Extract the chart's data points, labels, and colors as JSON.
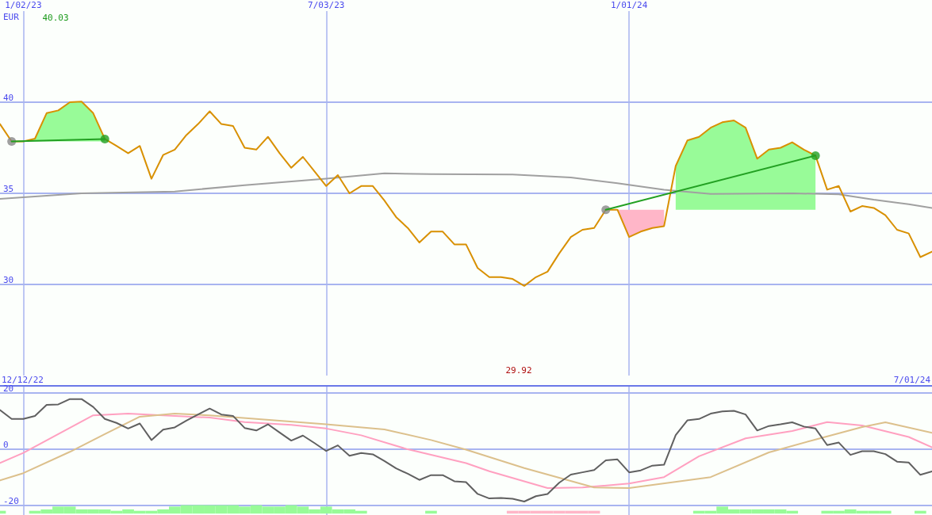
{
  "chart_data": [
    {
      "type": "line",
      "ylabel": "EUR",
      "x": [
        "2022-12-19",
        "2022-12-26",
        "2023-01-02",
        "2023-01-09",
        "2023-01-16",
        "2023-01-23",
        "2023-01-30",
        "2023-02-06",
        "2023-02-13",
        "2023-02-20",
        "2023-02-27",
        "2023-03-06",
        "2023-03-13",
        "2023-03-20",
        "2023-03-27",
        "2023-04-03",
        "2023-04-10",
        "2023-04-17",
        "2023-04-24",
        "2023-05-01",
        "2023-05-08",
        "2023-05-15",
        "2023-05-22",
        "2023-05-29",
        "2023-06-05",
        "2023-06-12",
        "2023-06-19",
        "2023-06-26",
        "2023-07-03",
        "2023-07-10",
        "2023-07-17",
        "2023-07-24",
        "2023-07-31",
        "2023-08-07",
        "2023-08-14",
        "2023-08-21",
        "2023-08-28",
        "2023-09-04",
        "2023-09-11",
        "2023-09-18",
        "2023-09-25",
        "2023-10-02",
        "2023-10-09",
        "2023-10-16",
        "2023-10-23",
        "2023-10-30",
        "2023-11-06",
        "2023-11-13",
        "2023-11-20",
        "2023-11-27",
        "2023-12-04",
        "2023-12-11",
        "2023-12-18",
        "2023-12-25",
        "2024-01-01",
        "2024-01-08",
        "2024-01-15",
        "2024-01-22",
        "2024-01-29",
        "2024-02-05",
        "2024-02-12",
        "2024-02-19",
        "2024-02-26",
        "2024-03-04",
        "2024-03-11",
        "2024-03-18",
        "2024-03-25",
        "2024-04-01",
        "2024-04-08",
        "2024-04-15",
        "2024-04-22",
        "2024-04-29",
        "2024-05-06",
        "2024-05-13",
        "2024-05-20",
        "2024-05-27",
        "2024-06-03",
        "2024-06-10",
        "2024-06-17",
        "2024-06-24",
        "2024-07-01"
      ],
      "xlim": [
        "2022-12-19",
        "2024-07-01"
      ],
      "xticks": [
        {
          "value": "2023-01-02",
          "label": "1/02/23"
        },
        {
          "value": "2023-07-03",
          "label": "7/03/23"
        },
        {
          "value": "2024-01-01",
          "label": "1/01/24"
        }
      ],
      "ylim": [
        25,
        45
      ],
      "yticks": [
        30,
        35,
        40
      ],
      "grid": true,
      "annotations": [
        "40.03",
        "29.92"
      ],
      "series": [
        {
          "type": "area",
          "color": "#98fb98",
          "x": [
            "2022-12-26",
            "2023-01-02",
            "2023-01-09",
            "2023-01-16",
            "2023-01-23",
            "2023-01-30",
            "2023-02-06",
            "2023-02-13",
            "2023-02-20"
          ],
          "values": [
            null,
            null,
            null,
            null,
            null,
            null,
            null,
            null,
            null
          ],
          "lower": [
            37.85,
            37.85,
            37.85,
            37.85,
            37.85,
            37.85,
            37.85,
            37.85,
            37.85
          ],
          "upper": [
            37.85,
            37.85,
            38.0,
            39.4,
            39.55,
            40.0,
            40.03,
            39.4,
            37.98
          ]
        },
        {
          "type": "area",
          "color": "#ffb6c8",
          "x": [
            "2023-12-18",
            "2023-12-25",
            "2024-01-01",
            "2024-01-08",
            "2024-01-15",
            "2024-01-22"
          ],
          "values": [
            null,
            null,
            null,
            null,
            null,
            null
          ],
          "lower": [
            34.1,
            34.1,
            32.6,
            32.9,
            33.1,
            33.2
          ],
          "upper": [
            34.1,
            34.1,
            34.1,
            34.1,
            34.1,
            34.1
          ]
        },
        {
          "type": "area",
          "color": "#98fb98",
          "x": [
            "2024-01-29",
            "2024-02-05",
            "2024-02-12",
            "2024-02-19",
            "2024-02-26",
            "2024-03-04",
            "2024-03-11",
            "2024-03-18",
            "2024-03-25",
            "2024-04-01",
            "2024-04-08",
            "2024-04-15",
            "2024-04-22"
          ],
          "values": [
            null,
            null,
            null,
            null,
            null,
            null,
            null,
            null,
            null,
            null,
            null,
            null,
            null
          ],
          "lower": [
            34.1,
            34.1,
            34.1,
            34.1,
            34.1,
            34.1,
            34.1,
            34.1,
            34.1,
            34.1,
            34.1,
            34.1,
            34.1
          ],
          "upper": [
            36.5,
            37.9,
            38.1,
            38.6,
            38.9,
            39.0,
            38.6,
            36.9,
            37.4,
            37.5,
            37.8,
            37.4,
            37.07
          ]
        },
        {
          "color": "#a0a0a0",
          "x": [
            "2022-12-19",
            "2023-02-06",
            "2023-04-03",
            "2023-05-15",
            "2023-07-03",
            "2023-08-07",
            "2023-09-04",
            "2023-10-23",
            "2023-11-27",
            "2023-12-25",
            "2024-01-22",
            "2024-02-19",
            "2024-04-08",
            "2024-05-06",
            "2024-05-27",
            "2024-06-17",
            "2024-07-01"
          ],
          "values": [
            34.7,
            35.0,
            35.1,
            35.45,
            35.8,
            36.1,
            36.05,
            36.03,
            35.87,
            35.55,
            35.2,
            34.97,
            35.0,
            34.95,
            34.65,
            34.4,
            34.2
          ]
        },
        {
          "color": "#d89000",
          "values": [
            38.8,
            37.85,
            37.85,
            38.0,
            39.4,
            39.55,
            40.0,
            40.03,
            39.4,
            37.98,
            37.6,
            37.2,
            37.6,
            35.8,
            37.1,
            37.4,
            38.2,
            38.8,
            39.5,
            38.8,
            38.7,
            37.5,
            37.4,
            38.1,
            37.2,
            36.4,
            37.0,
            36.2,
            35.4,
            36.0,
            35.0,
            35.4,
            35.4,
            34.6,
            33.7,
            33.1,
            32.3,
            32.9,
            32.9,
            32.2,
            32.2,
            30.9,
            30.4,
            30.4,
            30.3,
            29.92,
            30.4,
            30.7,
            31.7,
            32.6,
            33.0,
            33.1,
            34.1,
            34.1,
            32.6,
            32.9,
            33.1,
            33.2,
            36.5,
            37.9,
            38.1,
            38.6,
            38.9,
            39.0,
            38.6,
            36.9,
            37.4,
            37.5,
            37.8,
            37.4,
            37.07,
            35.2,
            35.4,
            34.0,
            34.3,
            34.2,
            33.8,
            33.0,
            32.8,
            31.5,
            31.8
          ]
        },
        {
          "type": "scatter",
          "color": "#888888",
          "marker": "circle",
          "x": [
            "2022-12-26",
            "2023-12-18"
          ],
          "values": [
            37.85,
            34.1
          ]
        },
        {
          "type": "scatter",
          "color": "#22a022",
          "marker": "circle",
          "x": [
            "2023-02-20",
            "2024-04-22"
          ],
          "values": [
            37.98,
            37.07
          ]
        },
        {
          "color": "#22a022",
          "x": [
            "2022-12-26",
            "2023-02-20"
          ],
          "values": [
            37.85,
            37.98
          ]
        },
        {
          "color": "#22a022",
          "x": [
            "2023-12-18",
            "2024-04-22"
          ],
          "values": [
            34.1,
            37.07
          ]
        }
      ]
    },
    {
      "type": "line",
      "tick_labels": "y",
      "x": [
        "2022-12-19",
        "2022-12-26",
        "2023-01-02",
        "2023-01-09",
        "2023-01-16",
        "2023-01-23",
        "2023-01-30",
        "2023-02-06",
        "2023-02-13",
        "2023-02-20",
        "2023-02-27",
        "2023-03-06",
        "2023-03-13",
        "2023-03-20",
        "2023-03-27",
        "2023-04-03",
        "2023-04-10",
        "2023-04-17",
        "2023-04-24",
        "2023-05-01",
        "2023-05-08",
        "2023-05-15",
        "2023-05-22",
        "2023-05-29",
        "2023-06-05",
        "2023-06-12",
        "2023-06-19",
        "2023-06-26",
        "2023-07-03",
        "2023-07-10",
        "2023-07-17",
        "2023-07-24",
        "2023-07-31",
        "2023-08-07",
        "2023-08-14",
        "2023-08-21",
        "2023-08-28",
        "2023-09-04",
        "2023-09-11",
        "2023-09-18",
        "2023-09-25",
        "2023-10-02",
        "2023-10-09",
        "2023-10-16",
        "2023-10-23",
        "2023-10-30",
        "2023-11-06",
        "2023-11-13",
        "2023-11-20",
        "2023-11-27",
        "2023-12-04",
        "2023-12-11",
        "2023-12-18",
        "2023-12-25",
        "2024-01-01",
        "2024-01-08",
        "2024-01-15",
        "2024-01-22",
        "2024-01-29",
        "2024-02-05",
        "2024-02-12",
        "2024-02-19",
        "2024-02-26",
        "2024-03-04",
        "2024-03-11",
        "2024-03-18",
        "2024-03-25",
        "2024-04-01",
        "2024-04-08",
        "2024-04-15",
        "2024-04-22",
        "2024-04-29",
        "2024-05-06",
        "2024-05-13",
        "2024-05-20",
        "2024-05-27",
        "2024-06-03",
        "2024-06-10",
        "2024-06-17",
        "2024-06-24",
        "2024-07-01"
      ],
      "xlim": [
        "2022-12-19",
        "2024-07-01"
      ],
      "xticks": [
        {
          "value": "2023-01-02",
          "label": null
        },
        {
          "value": "2023-07-03",
          "label": null
        },
        {
          "value": "2024-01-01",
          "label": null
        }
      ],
      "ylim": [
        -23.5,
        22.5
      ],
      "yticks": [
        20,
        0,
        -20
      ],
      "grid": true,
      "annotations": [
        "12/12/22",
        "7/01/24"
      ],
      "series": [
        {
          "type": "bar",
          "color": "#98fb98",
          "colors": [
            "#98fb98",
            null,
            null,
            "#98fb98",
            "#98fb98",
            "#98fb98",
            "#98fb98",
            "#98fb98",
            "#98fb98",
            "#98fb98",
            "#98fb98",
            "#98fb98",
            "#98fb98",
            "#98fb98",
            "#98fb98",
            "#98fb98",
            "#98fb98",
            "#98fb98",
            "#98fb98",
            "#98fb98",
            "#98fb98",
            "#98fb98",
            "#98fb98",
            "#98fb98",
            "#98fb98",
            "#98fb98",
            "#98fb98",
            "#98fb98",
            "#98fb98",
            "#98fb98",
            "#98fb98",
            "#98fb98",
            null,
            null,
            null,
            null,
            null,
            "#98fb98",
            null,
            null,
            null,
            null,
            null,
            null,
            "#ffb6c8",
            "#ffb6c8",
            "#ffb6c8",
            "#ffb6c8",
            "#ffb6c8",
            "#ffb6c8",
            "#ffb6c8",
            "#ffb6c8",
            null,
            null,
            null,
            null,
            null,
            null,
            null,
            null,
            "#98fb98",
            "#98fb98",
            "#98fb98",
            "#98fb98",
            "#98fb98",
            "#98fb98",
            "#98fb98",
            "#98fb98",
            "#98fb98",
            null,
            null,
            "#98fb98",
            "#98fb98",
            "#98fb98",
            "#98fb98",
            "#98fb98",
            "#98fb98",
            null,
            null,
            "#98fb98",
            null
          ],
          "base": [
            -23,
            null,
            null,
            -23,
            -23,
            -23,
            -23,
            -23,
            -23,
            -23,
            -23,
            -23,
            -23,
            -23,
            -23,
            -23,
            -23,
            -23,
            -23,
            -23,
            -23,
            -23,
            -23,
            -23,
            -23,
            -23,
            -23,
            -23,
            -23,
            -23,
            -23,
            -23,
            null,
            null,
            null,
            null,
            null,
            -23,
            null,
            null,
            null,
            null,
            null,
            null,
            -23,
            -23,
            -23,
            -23,
            -23,
            -23,
            -23,
            -23,
            null,
            null,
            null,
            null,
            null,
            null,
            null,
            null,
            -23,
            -23,
            -23,
            -23,
            -23,
            -23,
            -23,
            -23,
            -23,
            null,
            null,
            -23,
            -23,
            -23,
            -23,
            -23,
            -23,
            null,
            null,
            -23,
            null
          ],
          "values": [
            1.0,
            null,
            null,
            1.0,
            1.5,
            2.5,
            2.5,
            1.5,
            1.5,
            1.5,
            1.0,
            1.5,
            1.0,
            1.0,
            1.5,
            2.5,
            3.0,
            3.0,
            3.0,
            3.0,
            3.0,
            2.5,
            3.0,
            2.5,
            2.5,
            3.0,
            2.5,
            1.5,
            2.5,
            1.5,
            1.5,
            1.0,
            null,
            null,
            null,
            null,
            null,
            1.0,
            null,
            null,
            null,
            null,
            null,
            null,
            1.0,
            1.0,
            1.0,
            1.0,
            1.0,
            1.0,
            1.0,
            1.0,
            null,
            null,
            null,
            null,
            null,
            null,
            null,
            null,
            1.0,
            1.0,
            2.5,
            1.5,
            1.5,
            1.5,
            1.5,
            1.5,
            1.0,
            null,
            null,
            1.0,
            1.0,
            1.5,
            1.0,
            1.0,
            1.0,
            null,
            null,
            1.0,
            null
          ]
        },
        {
          "color": "#ffa0c0",
          "x": [
            "2022-12-19",
            "2023-01-02",
            "2023-01-23",
            "2023-02-13",
            "2023-03-06",
            "2023-03-27",
            "2023-04-24",
            "2023-05-15",
            "2023-06-12",
            "2023-07-03",
            "2023-07-24",
            "2023-08-21",
            "2023-09-25",
            "2023-10-09",
            "2023-11-13",
            "2023-12-04",
            "2024-01-01",
            "2024-01-22",
            "2024-02-12",
            "2024-03-11",
            "2024-04-08",
            "2024-04-29",
            "2024-05-20",
            "2024-06-17",
            "2024-07-01"
          ],
          "values": [
            -5.0,
            -1.4,
            5.3,
            12.0,
            12.6,
            12.0,
            11.2,
            9.6,
            8.6,
            7.3,
            4.9,
            -0.1,
            -5.0,
            -7.9,
            -13.9,
            -13.7,
            -12.3,
            -10.0,
            -2.6,
            3.8,
            6.4,
            9.6,
            8.4,
            4.3,
            0.6
          ]
        },
        {
          "color": "#dcc08c",
          "x": [
            "2022-12-19",
            "2023-01-02",
            "2023-01-30",
            "2023-02-20",
            "2023-03-13",
            "2023-04-03",
            "2023-04-24",
            "2023-05-22",
            "2023-07-03",
            "2023-08-07",
            "2023-09-04",
            "2023-09-25",
            "2023-10-30",
            "2023-12-11",
            "2024-01-01",
            "2024-02-19",
            "2024-03-25",
            "2024-04-22",
            "2024-05-20",
            "2024-06-03",
            "2024-07-01"
          ],
          "values": [
            -11.2,
            -8.6,
            -1.0,
            5.3,
            11.5,
            12.6,
            12.0,
            10.7,
            8.8,
            7.0,
            3.2,
            -0.2,
            -6.8,
            -13.7,
            -13.9,
            -10.0,
            -1.2,
            3.4,
            7.8,
            9.5,
            5.8
          ]
        },
        {
          "color": "#606060",
          "values": [
            13.9,
            10.7,
            10.7,
            11.8,
            15.7,
            15.9,
            17.8,
            17.8,
            15.0,
            10.7,
            9.3,
            7.3,
            9.1,
            3.2,
            6.9,
            7.7,
            10.1,
            12.3,
            14.4,
            12.3,
            11.8,
            7.5,
            6.6,
            8.8,
            5.9,
            3.0,
            4.8,
            2.1,
            -0.7,
            1.3,
            -2.4,
            -1.4,
            -1.9,
            -4.3,
            -6.9,
            -8.8,
            -11.0,
            -9.3,
            -9.3,
            -11.5,
            -11.8,
            -16.0,
            -17.6,
            -17.4,
            -17.7,
            -18.7,
            -16.8,
            -16.0,
            -12.0,
            -9.1,
            -8.3,
            -7.5,
            -4.0,
            -3.7,
            -8.3,
            -7.6,
            -5.9,
            -5.6,
            5.0,
            10.2,
            10.7,
            12.6,
            13.4,
            13.6,
            12.3,
            6.6,
            8.2,
            8.8,
            9.5,
            8.0,
            7.3,
            1.4,
            2.3,
            -2.1,
            -0.8,
            -0.8,
            -1.8,
            -4.5,
            -4.8,
            -9.2,
            -8.0
          ]
        }
      ]
    }
  ]
}
